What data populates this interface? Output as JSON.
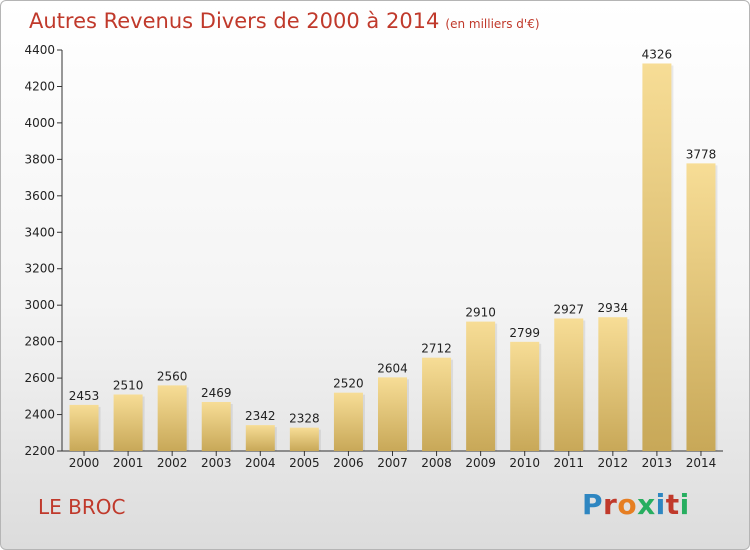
{
  "header": {
    "title": "Autres Revenus Divers de 2000 à 2014",
    "unit": "(en milliers d'€)"
  },
  "footer": {
    "place": "LE BROC",
    "logo": "Proxiti"
  },
  "colors": {
    "title": "#c0392b",
    "bar_light": "#f7dd96",
    "bar_dark": "#c8a858"
  },
  "chart_data": {
    "type": "bar",
    "title": "Autres Revenus Divers de 2000 à 2014",
    "ylabel": "",
    "xlabel": "",
    "categories": [
      "2000",
      "2001",
      "2002",
      "2003",
      "2004",
      "2005",
      "2006",
      "2007",
      "2008",
      "2009",
      "2010",
      "2011",
      "2012",
      "2013",
      "2014"
    ],
    "values": [
      2453,
      2510,
      2560,
      2469,
      2342,
      2328,
      2520,
      2604,
      2712,
      2910,
      2799,
      2927,
      2934,
      4326,
      3778
    ],
    "ylim": [
      2200,
      4400
    ],
    "yticks": [
      2200,
      2400,
      2600,
      2800,
      3000,
      3200,
      3400,
      3600,
      3800,
      4000,
      4200,
      4400
    ],
    "grid": false,
    "data_labels": true
  }
}
